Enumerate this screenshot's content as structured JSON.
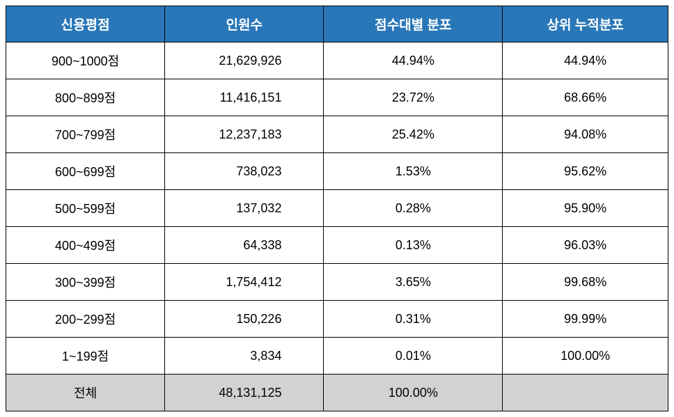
{
  "table": {
    "type": "table",
    "header_bg_color": "#2977b8",
    "header_text_color": "#ffffff",
    "total_row_bg_color": "#d2d2d2",
    "border_color": "#000000",
    "background_color": "#ffffff",
    "header_fontsize": 19,
    "cell_fontsize": 18,
    "column_widths": [
      "24%",
      "24%",
      "27%",
      "25%"
    ],
    "columns": [
      "신용평점",
      "인원수",
      "점수대별 분포",
      "상위 누적분포"
    ],
    "rows": [
      {
        "score": "900~1000점",
        "count": "21,629,926",
        "dist": "44.94%",
        "cumulative": "44.94%"
      },
      {
        "score": "800~899점",
        "count": "11,416,151",
        "dist": "23.72%",
        "cumulative": "68.66%"
      },
      {
        "score": "700~799점",
        "count": "12,237,183",
        "dist": "25.42%",
        "cumulative": "94.08%"
      },
      {
        "score": "600~699점",
        "count": "738,023",
        "dist": "1.53%",
        "cumulative": "95.62%"
      },
      {
        "score": "500~599점",
        "count": "137,032",
        "dist": "0.28%",
        "cumulative": "95.90%"
      },
      {
        "score": "400~499점",
        "count": "64,338",
        "dist": "0.13%",
        "cumulative": "96.03%"
      },
      {
        "score": "300~399점",
        "count": "1,754,412",
        "dist": "3.65%",
        "cumulative": "99.68%"
      },
      {
        "score": "200~299점",
        "count": "150,226",
        "dist": "0.31%",
        "cumulative": "99.99%"
      },
      {
        "score": "1~199점",
        "count": "3,834",
        "dist": "0.01%",
        "cumulative": "100.00%"
      }
    ],
    "total_row": {
      "score": "전체",
      "count": "48,131,125",
      "dist": "100.00%",
      "cumulative": ""
    }
  }
}
